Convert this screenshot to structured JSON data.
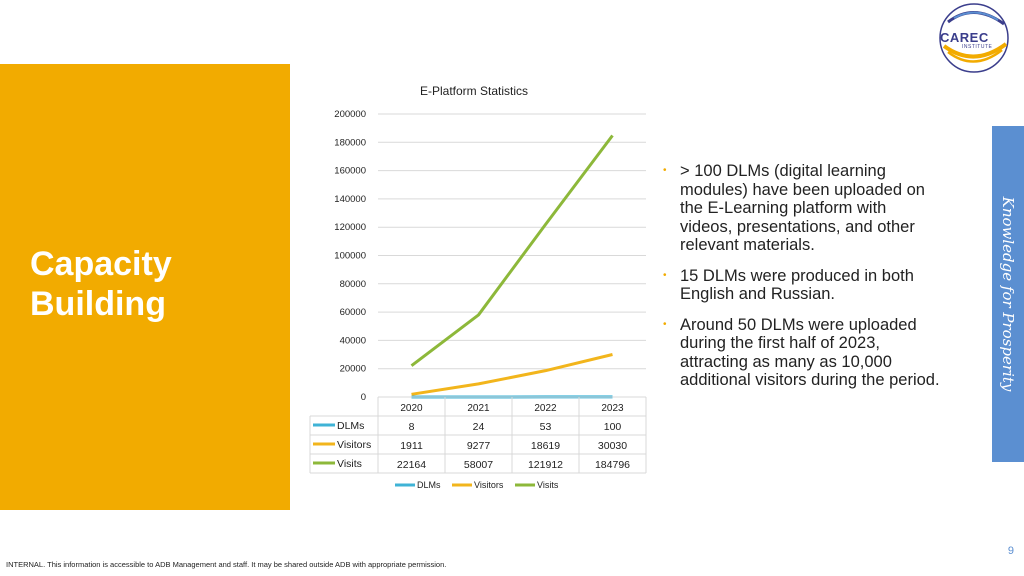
{
  "logo": {
    "name": "CAREC",
    "sub": "INSTITUTE"
  },
  "section": {
    "title_line1": "Capacity",
    "title_line2": "Building"
  },
  "side_tab": {
    "text": "Knowledge for Prosperity"
  },
  "bullets": [
    "> 100 DLMs (digital learning modules) have been uploaded on the E-Learning platform with videos, presentations, and other relevant materials.",
    "15 DLMs were produced in both English and Russian.",
    "Around 50 DLMs were uploaded during the first half of 2023, attracting as many as 10,000 additional visitors during the period."
  ],
  "footer": "INTERNAL. This information is accessible to ADB Management and staff. It may be shared outside ADB with appropriate permission.",
  "page_number": "9",
  "chart_data": {
    "type": "line",
    "title": "E-Platform Statistics",
    "categories": [
      "2020",
      "2021",
      "2022",
      "2023"
    ],
    "ylim": [
      0,
      200000
    ],
    "yticks": [
      "200000",
      "180000",
      "160000",
      "140000",
      "120000",
      "100000",
      "80000",
      "60000",
      "40000",
      "20000",
      "0"
    ],
    "grid": true,
    "legend_position": "bottom",
    "series": [
      {
        "name": "DLMs",
        "values": [
          8,
          24,
          53,
          100
        ],
        "display": [
          "8",
          "24",
          "53",
          "100"
        ],
        "color": "#3fb3d6"
      },
      {
        "name": "Visitors",
        "values": [
          1911,
          9277,
          18619,
          30030
        ],
        "display": [
          "1911",
          "9277",
          "18619",
          "30030"
        ],
        "color": "#f2b51c"
      },
      {
        "name": "Visits",
        "values": [
          22164,
          58007,
          121912,
          184796
        ],
        "display": [
          "22164",
          "58007",
          "121912",
          "184796"
        ],
        "color": "#8db83a"
      }
    ]
  }
}
